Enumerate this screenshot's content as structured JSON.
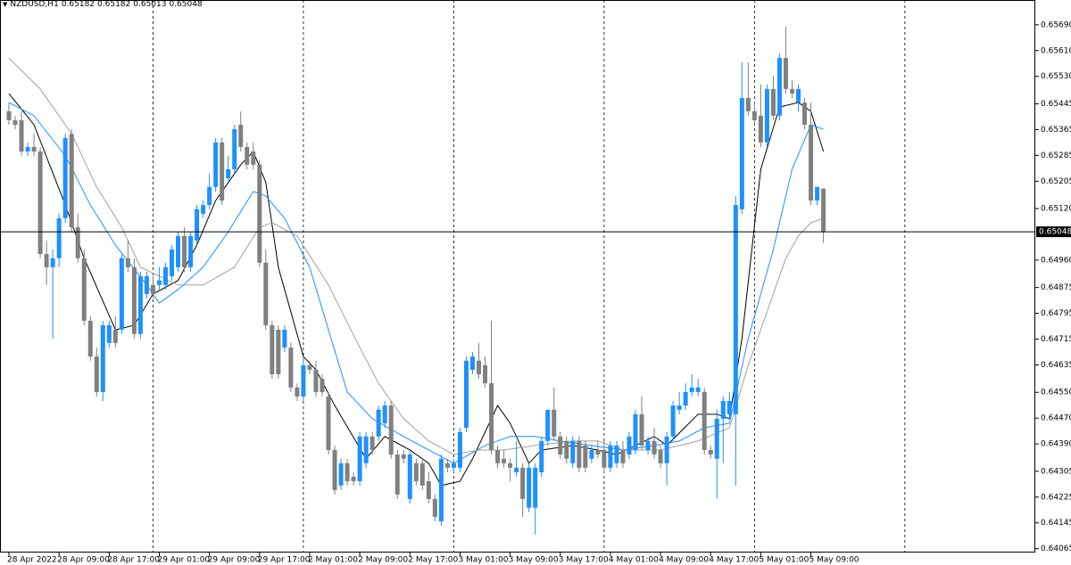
{
  "chart_data": {
    "type": "candlestick",
    "symbol": "NZDUSD,H1",
    "up_color": "#1e90ff",
    "down_color": "#808080",
    "current_price": 0.65048,
    "ylim": [
      0.64053,
      0.65767
    ],
    "yticks": [
      {
        "value": 0.6569,
        "label": "0.65690"
      },
      {
        "value": 0.6561,
        "label": "0.65610"
      },
      {
        "value": 0.6553,
        "label": "0.65530"
      },
      0.65445,
      0.65365,
      0.65285,
      0.65205,
      {
        "value": 0.6512,
        "label": "0.65120"
      },
      {
        "value": 0.6496,
        "label": "0.64960"
      },
      0.64875,
      0.64795,
      0.64715,
      0.64635,
      {
        "value": 0.6455,
        "label": "0.64550"
      },
      {
        "value": 0.6447,
        "label": "0.64470"
      },
      {
        "value": 0.6439,
        "label": "0.64390"
      },
      0.64305,
      0.64225,
      0.64145,
      0.64065
    ],
    "categories": [
      "28 Apr 2022",
      null,
      null,
      null,
      null,
      null,
      null,
      null,
      "28 Apr 09:00",
      null,
      null,
      null,
      null,
      null,
      null,
      null,
      "28 Apr 17:00",
      null,
      null,
      null,
      null,
      null,
      null,
      null,
      "29 Apr 01:00",
      null,
      null,
      null,
      null,
      null,
      null,
      null,
      "29 Apr 09:00",
      null,
      null,
      null,
      null,
      null,
      null,
      null,
      "29 Apr 17:00",
      null,
      null,
      null,
      null,
      null,
      null,
      null,
      "2 May 01:00",
      null,
      null,
      null,
      null,
      null,
      null,
      null,
      "2 May 09:00",
      null,
      null,
      null,
      null,
      null,
      null,
      null,
      "2 May 17:00",
      null,
      null,
      null,
      null,
      null,
      null,
      null,
      "3 May 01:00",
      null,
      null,
      null,
      null,
      null,
      null,
      null,
      "3 May 09:00",
      null,
      null,
      null,
      null,
      null,
      null,
      null,
      "3 May 17:00",
      null,
      null,
      null,
      null,
      null,
      null,
      null,
      "4 May 01:00",
      null,
      null,
      null,
      null,
      null,
      null,
      null,
      "4 May 09:00",
      null,
      null,
      null,
      null,
      null,
      null,
      null,
      "4 May 17:00",
      null,
      null,
      null,
      null,
      null,
      null,
      null,
      "5 May 01:00",
      null,
      null,
      null,
      null,
      null,
      null,
      null,
      "5 May 09:00",
      null,
      null
    ],
    "open": [
      0.65422,
      0.65394,
      0.65394,
      0.65297,
      0.65311,
      0.65297,
      0.64979,
      0.64938,
      0.64966,
      0.6509,
      0.65352,
      0.65062,
      0.64966,
      0.64772,
      0.64661,
      0.64551,
      0.64703,
      0.64744,
      0.64744,
      0.64966,
      0.64938,
      0.64731,
      0.64855,
      0.64883,
      0.64883,
      0.64883,
      0.6491,
      0.64938,
      0.65035,
      0.64938,
      0.65021,
      0.65104,
      0.65131,
      0.65187,
      0.65325,
      0.65214,
      0.65242,
      0.6538,
      0.65311,
      0.65297,
      0.65256,
      0.64952,
      0.64758,
      0.64744,
      0.64689,
      0.64689,
      0.64565,
      0.64537,
      0.64634,
      0.6462,
      0.64592,
      0.64537,
      0.64371,
      0.64261,
      0.6433,
      0.64288,
      0.64274,
      0.6433,
      0.64413,
      0.64413,
      0.64454,
      0.64509,
      0.64357,
      0.64357,
      0.64219,
      0.6433,
      0.6433,
      0.64274,
      0.64219,
      0.6415,
      0.6433,
      0.64316,
      0.64316,
      0.6444,
      0.6462,
      0.64648,
      0.64634,
      0.64578,
      0.64371,
      0.64344,
      0.6433,
      0.64302,
      0.64316,
      0.64192,
      0.64192,
      0.64302,
      0.64399,
      0.64496,
      0.64413,
      0.64399,
      0.6433,
      0.64399,
      0.64385,
      0.64344,
      0.64371,
      0.64371,
      0.64316,
      0.6433,
      0.64371,
      0.64357,
      0.64371,
      0.64482,
      0.64371,
      0.64399,
      0.64371,
      0.6433,
      0.64413,
      0.64496,
      0.64509,
      0.64551,
      0.64551,
      0.64551,
      0.64371,
      0.64344,
      0.64468,
      0.64482,
      0.64482,
      0.65118,
      0.65463,
      0.65422,
      0.65408,
      0.65325,
      0.65491,
      0.65408,
      0.65587,
      0.65491,
      0.65449,
      0.65449,
      0.6538,
      0.65145,
      0.65182
    ],
    "high": [
      0.65449,
      0.65408,
      0.65422,
      0.65325,
      0.65352,
      0.65311,
      0.65021,
      0.64993,
      0.65104,
      0.65352,
      0.65366,
      0.65104,
      0.64993,
      0.64786,
      0.64689,
      0.64772,
      0.64772,
      0.64786,
      0.64979,
      0.65021,
      0.64966,
      0.64924,
      0.64924,
      0.6491,
      0.64938,
      0.64952,
      0.65007,
      0.65048,
      0.65062,
      0.65048,
      0.65131,
      0.65145,
      0.65228,
      0.65339,
      0.65339,
      0.65284,
      0.6538,
      0.65422,
      0.65325,
      0.65325,
      0.6527,
      0.64993,
      0.64772,
      0.64758,
      0.64758,
      0.64703,
      0.64578,
      0.64661,
      0.64648,
      0.64648,
      0.64606,
      0.64551,
      0.64385,
      0.64344,
      0.64344,
      0.64302,
      0.64427,
      0.64427,
      0.64427,
      0.64509,
      0.64523,
      0.64523,
      0.64371,
      0.64371,
      0.64371,
      0.64344,
      0.64344,
      0.64302,
      0.64233,
      0.64357,
      0.64344,
      0.64344,
      0.6444,
      0.64661,
      0.64675,
      0.64703,
      0.64661,
      0.64772,
      0.64385,
      0.64371,
      0.64344,
      0.64399,
      0.6433,
      0.6433,
      0.6433,
      0.64413,
      0.64496,
      0.64565,
      0.64427,
      0.64413,
      0.64413,
      0.64413,
      0.64399,
      0.64385,
      0.64399,
      0.64399,
      0.64399,
      0.64399,
      0.64399,
      0.64427,
      0.64496,
      0.64537,
      0.64413,
      0.6444,
      0.64385,
      0.64427,
      0.64523,
      0.64551,
      0.64578,
      0.64606,
      0.64592,
      0.64565,
      0.64385,
      0.64496,
      0.64537,
      0.64551,
      0.65159,
      0.65574,
      0.65574,
      0.65449,
      0.65505,
      0.65505,
      0.65532,
      0.65601,
      0.65684,
      0.65518,
      0.65505,
      0.65463,
      0.65449,
      0.65187,
      0.65182
    ],
    "low": [
      0.6538,
      0.65366,
      0.65284,
      0.65284,
      0.65284,
      0.64966,
      0.64883,
      0.64717,
      0.64938,
      0.65076,
      0.65048,
      0.64952,
      0.64758,
      0.64648,
      0.64537,
      0.64523,
      0.64689,
      0.64689,
      0.64731,
      0.64924,
      0.64717,
      0.64717,
      0.64841,
      0.64841,
      0.64869,
      0.64869,
      0.64897,
      0.64924,
      0.64924,
      0.64924,
      0.65007,
      0.6509,
      0.65118,
      0.65173,
      0.65131,
      0.65201,
      0.65228,
      0.65297,
      0.65242,
      0.65242,
      0.64938,
      0.64744,
      0.64592,
      0.64592,
      0.64675,
      0.64551,
      0.64523,
      0.64523,
      0.64606,
      0.64537,
      0.64537,
      0.64357,
      0.64233,
      0.64247,
      0.64261,
      0.64261,
      0.64261,
      0.64316,
      0.64357,
      0.64399,
      0.6444,
      0.64344,
      0.64219,
      0.6433,
      0.64205,
      0.64261,
      0.64247,
      0.64205,
      0.6415,
      0.64136,
      0.64302,
      0.64302,
      0.64302,
      0.64427,
      0.64606,
      0.64592,
      0.64565,
      0.64357,
      0.64316,
      0.64316,
      0.64274,
      0.64288,
      0.64164,
      0.64178,
      0.64109,
      0.64288,
      0.64385,
      0.64399,
      0.64344,
      0.6433,
      0.64316,
      0.64302,
      0.64302,
      0.6433,
      0.64344,
      0.64302,
      0.64302,
      0.64316,
      0.64316,
      0.64344,
      0.64357,
      0.64371,
      0.64357,
      0.64344,
      0.64316,
      0.64261,
      0.64399,
      0.64482,
      0.64496,
      0.64537,
      0.64537,
      0.64357,
      0.64344,
      0.64219,
      0.6433,
      0.64468,
      0.64261,
      0.65104,
      0.65408,
      0.6538,
      0.65311,
      0.65311,
      0.65394,
      0.65394,
      0.65477,
      0.65463,
      0.65422,
      0.65366,
      0.65131,
      0.65131,
      0.65013
    ],
    "close": [
      0.65394,
      0.6538,
      0.65297,
      0.65311,
      0.65297,
      0.64979,
      0.64938,
      0.64966,
      0.6509,
      0.65339,
      0.65062,
      0.64966,
      0.64772,
      0.64661,
      0.64551,
      0.64758,
      0.64758,
      0.64703,
      0.64966,
      0.64938,
      0.64731,
      0.6491,
      0.6491,
      0.64855,
      0.64897,
      0.64938,
      0.64993,
      0.65035,
      0.64938,
      0.65035,
      0.65118,
      0.65131,
      0.65187,
      0.65325,
      0.65145,
      0.65242,
      0.65366,
      0.65311,
      0.65256,
      0.65256,
      0.64952,
      0.64758,
      0.64606,
      0.64606,
      0.64744,
      0.64565,
      0.64537,
      0.64634,
      0.6462,
      0.64551,
      0.64551,
      0.64371,
      0.64247,
      0.6433,
      0.64274,
      0.64274,
      0.64413,
      0.64413,
      0.64371,
      0.64496,
      0.64509,
      0.64357,
      0.64233,
      0.64344,
      0.64357,
      0.64274,
      0.64261,
      0.64219,
      0.64164,
      0.64344,
      0.64316,
      0.6433,
      0.64427,
      0.64648,
      0.64661,
      0.64606,
      0.64578,
      0.64371,
      0.6433,
      0.6433,
      0.64316,
      0.64316,
      0.64219,
      0.64316,
      0.64316,
      0.64399,
      0.64496,
      0.64413,
      0.64357,
      0.64344,
      0.64399,
      0.64316,
      0.64316,
      0.64371,
      0.64357,
      0.64316,
      0.64385,
      0.64385,
      0.6433,
      0.64413,
      0.64482,
      0.64385,
      0.64399,
      0.64357,
      0.6433,
      0.64413,
      0.64509,
      0.64509,
      0.64551,
      0.64565,
      0.64565,
      0.64371,
      0.64357,
      0.64468,
      0.64523,
      0.64523,
      0.65131,
      0.65463,
      0.65422,
      0.65394,
      0.65325,
      0.65491,
      0.65408,
      0.65587,
      0.65491,
      0.65477,
      0.65491,
      0.6538,
      0.65145,
      0.65187,
      0.65048
    ],
    "overlays": [
      {
        "color": "#000000",
        "x": [
          0,
          4,
          9,
          12,
          17,
          20,
          23,
          27,
          30,
          33,
          37,
          39,
          41,
          43,
          47,
          49,
          52,
          57,
          60,
          64,
          67,
          69,
          72,
          74,
          78,
          80,
          83,
          85,
          90,
          94,
          97,
          103,
          105,
          110,
          113,
          115,
          117,
          120,
          123,
          126,
          128,
          130
        ],
        "values": [
          0.65477,
          0.6538,
          0.65131,
          0.64966,
          0.64744,
          0.64758,
          0.64855,
          0.64897,
          0.65007,
          0.65145,
          0.65256,
          0.65297,
          0.65201,
          0.64938,
          0.64661,
          0.6462,
          0.64509,
          0.64344,
          0.64413,
          0.64371,
          0.6433,
          0.64261,
          0.64274,
          0.64344,
          0.64509,
          0.64454,
          0.6433,
          0.64371,
          0.64385,
          0.64371,
          0.64357,
          0.64413,
          0.64385,
          0.64482,
          0.64482,
          0.64468,
          0.64717,
          0.65242,
          0.65435,
          0.65449,
          0.65422,
          0.65297
        ]
      },
      {
        "color": "#1e90ff",
        "x": [
          0,
          4,
          9,
          13,
          17,
          22,
          24,
          27,
          31,
          35,
          39,
          41,
          44,
          48,
          51,
          54,
          58,
          63,
          67,
          71,
          76,
          80,
          84,
          88,
          93,
          98,
          103,
          107,
          111,
          115,
          118,
          122,
          125,
          128,
          130
        ],
        "values": [
          0.65449,
          0.65408,
          0.65284,
          0.65131,
          0.65007,
          0.64883,
          0.64827,
          0.64869,
          0.64938,
          0.65048,
          0.65173,
          0.65159,
          0.6509,
          0.64938,
          0.64744,
          0.64551,
          0.64468,
          0.64413,
          0.64371,
          0.6433,
          0.64385,
          0.64413,
          0.64413,
          0.64399,
          0.64385,
          0.64371,
          0.64385,
          0.64399,
          0.6444,
          0.64454,
          0.64717,
          0.64993,
          0.65242,
          0.6538,
          0.65366
        ]
      },
      {
        "color": "#a0a0a0",
        "x": [
          0,
          5,
          10,
          14,
          18,
          21,
          27,
          31,
          36,
          40,
          42,
          46,
          51,
          56,
          59,
          63,
          67,
          71,
          75,
          79,
          84,
          90,
          94,
          98,
          104,
          110,
          115,
          118,
          121,
          124,
          126,
          128,
          130
        ],
        "values": [
          0.65587,
          0.65491,
          0.65352,
          0.65187,
          0.65062,
          0.64938,
          0.64883,
          0.64883,
          0.64938,
          0.65062,
          0.65076,
          0.65035,
          0.64883,
          0.64689,
          0.64578,
          0.64468,
          0.64399,
          0.64357,
          0.64371,
          0.64371,
          0.64385,
          0.64399,
          0.64399,
          0.64371,
          0.64371,
          0.64399,
          0.6444,
          0.64634,
          0.648,
          0.64966,
          0.65035,
          0.65076,
          0.6509
        ]
      }
    ]
  }
}
